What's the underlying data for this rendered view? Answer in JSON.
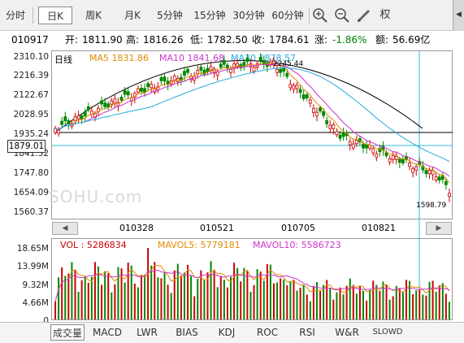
{
  "toolbar": {
    "buttons": [
      "分时",
      "日K",
      "周K",
      "月K",
      "5分钟",
      "15分钟",
      "30分钟",
      "60分钟"
    ],
    "active_index": 1,
    "icons": [
      "zoom-in-icon",
      "zoom-out-icon",
      "pencil-icon"
    ],
    "rights_label": "权",
    "expand_icon": "chevron-left-icon"
  },
  "quote": {
    "code": "010917",
    "open_label": "开:",
    "open": "1811.90",
    "high_label": "高:",
    "high": "1816.26",
    "low_label": "低:",
    "low": "1782.50",
    "close_label": "收:",
    "close": "1784.61",
    "change_label": "涨:",
    "change": "-1.86%",
    "amount_label": "额:",
    "amount": "56.69亿",
    "change_color": "#008000"
  },
  "price_panel": {
    "type_label": "日线",
    "ma5": "MA5  1831.86",
    "ma10": "MA10  1841.68",
    "ma30": "MA30  1878.57",
    "ma5_color": "#e08a00",
    "ma10_color": "#cc33cc",
    "ma30_color": "#22aadd",
    "y_labels": [
      "2310.10",
      "2216.39",
      "2122.67",
      "2028.95",
      "1935.24",
      "1841.52",
      "1747.80",
      "1654.09",
      "1560.37"
    ],
    "cursor_value": "1879.01",
    "high_mark": "2245.44",
    "low_mark": "1598.79",
    "watermark": "SOHU.com"
  },
  "x_labels": [
    "010328",
    "010521",
    "010705",
    "010821"
  ],
  "volume_panel": {
    "vol": "VOL :   5286834",
    "mavol5": "MAVOL5:  5779181",
    "mavol10": "MAVOL10:  5586723",
    "vol_color": "#cc0000",
    "mavol5_color": "#e08a00",
    "mavol10_color": "#cc33cc",
    "y_labels": [
      "18.65M",
      "13.99M",
      "9.32M",
      "4.66M",
      "0"
    ]
  },
  "tabs": [
    "成交量",
    "MACD",
    "LWR",
    "BIAS",
    "KDJ",
    "ROC",
    "RSI",
    "W&R",
    "SLOWD"
  ],
  "active_tab": 0,
  "scroll": {
    "left_arrow": "◀",
    "right_arrow": "▶"
  }
}
